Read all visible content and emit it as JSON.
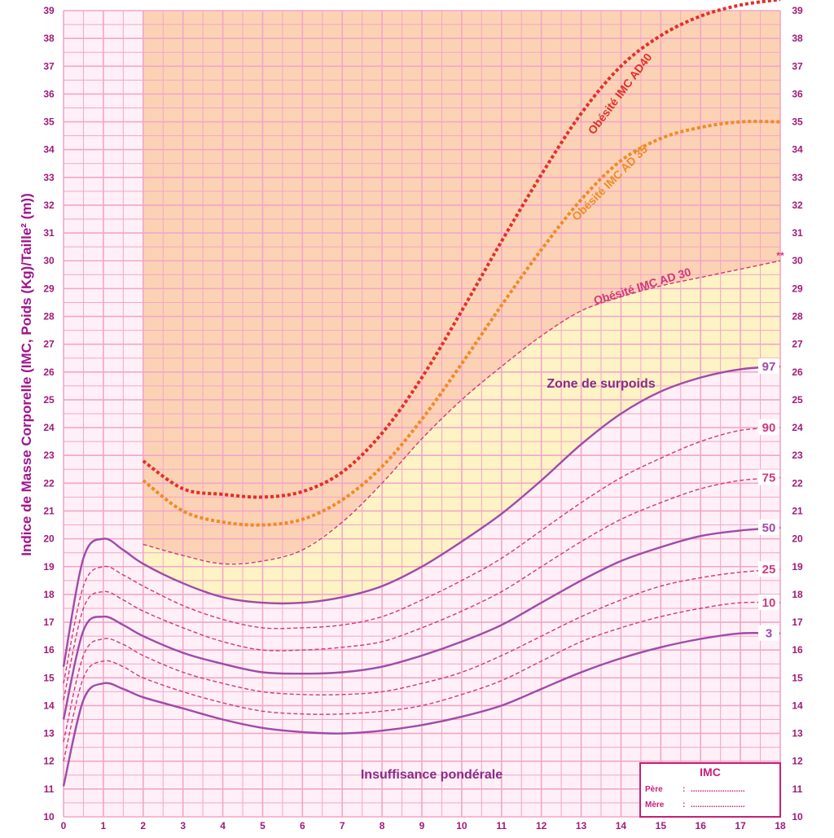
{
  "chart_data": {
    "type": "line",
    "title": "",
    "ylabel": "Indice de Masse Corporelle (IMC, Poids (Kg)/Taille² (m))",
    "xlabel": "",
    "xlim": [
      0,
      18
    ],
    "ylim": [
      10,
      39
    ],
    "x_ticks": [
      "0",
      "1",
      "2",
      "3",
      "4",
      "5",
      "6",
      "7",
      "8",
      "9",
      "10",
      "11",
      "12",
      "13",
      "14",
      "15",
      "16",
      "17",
      "18"
    ],
    "y_ticks": [
      "10",
      "11",
      "12",
      "13",
      "14",
      "15",
      "16",
      "17",
      "18",
      "19",
      "20",
      "21",
      "22",
      "23",
      "24",
      "25",
      "26",
      "27",
      "28",
      "29",
      "30",
      "31",
      "32",
      "33",
      "34",
      "35",
      "36",
      "37",
      "38",
      "39"
    ],
    "grid": true,
    "zones": [
      {
        "name": "overweight-zone",
        "label": "Zone de surpoids",
        "color": "#fdf3c4"
      },
      {
        "name": "obesity-zone",
        "color": "#fcd2b4"
      },
      {
        "name": "underweight-zone",
        "label": "Insuffisance pondérale"
      }
    ],
    "series": [
      {
        "name": "3",
        "color": "#a04aa8",
        "style": "solid",
        "x": [
          0,
          0.5,
          1,
          1.5,
          2,
          3,
          4,
          5,
          6,
          7,
          8,
          9,
          10,
          11,
          12,
          13,
          14,
          15,
          16,
          17,
          18
        ],
        "values": [
          11.1,
          14.2,
          14.8,
          14.6,
          14.3,
          13.9,
          13.5,
          13.2,
          13.05,
          13.0,
          13.1,
          13.3,
          13.6,
          14.0,
          14.6,
          15.2,
          15.7,
          16.1,
          16.4,
          16.6,
          16.6
        ]
      },
      {
        "name": "10",
        "color": "#d0387e",
        "style": "dashed",
        "x": [
          0,
          0.5,
          1,
          1.5,
          2,
          3,
          4,
          5,
          6,
          7,
          8,
          9,
          10,
          11,
          12,
          13,
          14,
          15,
          16,
          17,
          18
        ],
        "values": [
          12.0,
          15.0,
          15.6,
          15.4,
          15.0,
          14.5,
          14.1,
          13.8,
          13.7,
          13.7,
          13.8,
          14.0,
          14.4,
          14.9,
          15.6,
          16.3,
          16.8,
          17.2,
          17.5,
          17.7,
          17.7
        ]
      },
      {
        "name": "25",
        "color": "#d0387e",
        "style": "dashed",
        "x": [
          0,
          0.5,
          1,
          1.5,
          2,
          3,
          4,
          5,
          6,
          7,
          8,
          9,
          10,
          11,
          12,
          13,
          14,
          15,
          16,
          17,
          18
        ],
        "values": [
          12.7,
          15.8,
          16.4,
          16.2,
          15.8,
          15.2,
          14.8,
          14.5,
          14.4,
          14.4,
          14.5,
          14.8,
          15.2,
          15.8,
          16.5,
          17.2,
          17.8,
          18.3,
          18.6,
          18.8,
          18.9
        ]
      },
      {
        "name": "50",
        "color": "#a04aa8",
        "style": "solid",
        "x": [
          0,
          0.5,
          1,
          1.5,
          2,
          3,
          4,
          5,
          6,
          7,
          8,
          9,
          10,
          11,
          12,
          13,
          14,
          15,
          16,
          17,
          18
        ],
        "values": [
          13.5,
          16.7,
          17.2,
          16.9,
          16.5,
          15.9,
          15.5,
          15.2,
          15.15,
          15.2,
          15.4,
          15.8,
          16.3,
          16.9,
          17.7,
          18.5,
          19.2,
          19.7,
          20.1,
          20.3,
          20.4
        ]
      },
      {
        "name": "75",
        "color": "#d0387e",
        "style": "dashed",
        "x": [
          0,
          0.5,
          1,
          1.5,
          2,
          3,
          4,
          5,
          6,
          7,
          8,
          9,
          10,
          11,
          12,
          13,
          14,
          15,
          16,
          17,
          18
        ],
        "values": [
          14.2,
          17.5,
          18.1,
          17.8,
          17.4,
          16.8,
          16.3,
          16.0,
          16.0,
          16.1,
          16.3,
          16.8,
          17.4,
          18.1,
          19.0,
          19.9,
          20.7,
          21.3,
          21.8,
          22.1,
          22.2
        ]
      },
      {
        "name": "90",
        "color": "#d0387e",
        "style": "dashed",
        "x": [
          0,
          0.5,
          1,
          1.5,
          2,
          3,
          4,
          5,
          6,
          7,
          8,
          9,
          10,
          11,
          12,
          13,
          14,
          15,
          16,
          17,
          18
        ],
        "values": [
          14.8,
          18.3,
          19.0,
          18.7,
          18.3,
          17.6,
          17.1,
          16.8,
          16.8,
          16.9,
          17.2,
          17.8,
          18.5,
          19.3,
          20.3,
          21.3,
          22.2,
          22.9,
          23.5,
          23.9,
          24.0
        ]
      },
      {
        "name": "97",
        "color": "#a04aa8",
        "style": "solid",
        "x": [
          0,
          0.5,
          1,
          1.5,
          2,
          3,
          4,
          5,
          6,
          7,
          8,
          9,
          10,
          11,
          12,
          13,
          14,
          15,
          16,
          17,
          18
        ],
        "values": [
          15.4,
          19.3,
          20.0,
          19.6,
          19.1,
          18.4,
          17.9,
          17.7,
          17.7,
          17.9,
          18.3,
          19.0,
          19.9,
          20.9,
          22.1,
          23.4,
          24.5,
          25.3,
          25.8,
          26.1,
          26.2
        ]
      },
      {
        "name": "Obésité IMC AD 30",
        "color": "#d0387e",
        "style": "dashed",
        "x": [
          2,
          3,
          4,
          5,
          6,
          7,
          8,
          9,
          10,
          11,
          12,
          13,
          14,
          15,
          16,
          17,
          18
        ],
        "values": [
          19.8,
          19.4,
          19.1,
          19.2,
          19.6,
          20.6,
          22.0,
          23.6,
          25.0,
          26.2,
          27.3,
          28.2,
          28.7,
          29.1,
          29.4,
          29.7,
          30.0
        ]
      },
      {
        "name": "Obésité IMC AD 35",
        "color": "#f08a28",
        "style": "dotted",
        "x": [
          2,
          3,
          4,
          5,
          6,
          7,
          8,
          9,
          10,
          11,
          12,
          13,
          14,
          15,
          16,
          17,
          18
        ],
        "values": [
          22.1,
          21.0,
          20.6,
          20.5,
          20.7,
          21.4,
          22.6,
          24.3,
          26.3,
          28.4,
          30.4,
          32.2,
          33.6,
          34.4,
          34.8,
          35.0,
          35.0
        ]
      },
      {
        "name": "Obésité IMC AD 40",
        "color": "#e0302a",
        "style": "dotted",
        "x": [
          2,
          3,
          4,
          5,
          6,
          7,
          8,
          9,
          10,
          11,
          12,
          13,
          14,
          15,
          16,
          17,
          18
        ],
        "values": [
          22.8,
          21.8,
          21.6,
          21.5,
          21.7,
          22.4,
          23.8,
          25.8,
          28.2,
          30.7,
          33.1,
          35.3,
          37.0,
          38.1,
          38.8,
          39.2,
          39.4
        ]
      }
    ],
    "annotations": {
      "overweight_zone_label": "Zone de surpoids",
      "underweight_label": "Insuffisance pondérale",
      "obesity_30_label": "Obésité IMC AD 30",
      "obesity_35_label": "Obésité IMC AD 35",
      "obesity_40_label": "Obésité IMC AD40",
      "asterisks": "**"
    },
    "legend_box": {
      "title": "IMC",
      "rows": [
        {
          "label": "Père",
          "sep": ":",
          "dots": "........................"
        },
        {
          "label": "Mère",
          "sep": ":",
          "dots": "........................"
        }
      ]
    },
    "colors": {
      "grid": "#f2a6c8",
      "axis_text": "#a01a78",
      "obesity_fill": "#fcd2b4",
      "overweight_fill": "#fdf3c4",
      "background": "#fef0f6"
    }
  }
}
